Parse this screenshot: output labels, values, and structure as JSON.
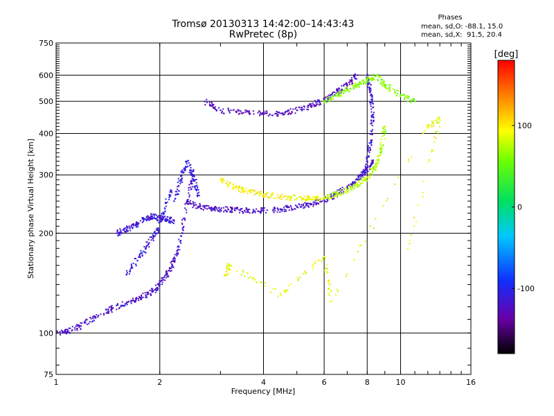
{
  "chart_data": {
    "type": "scatter",
    "title": "Tromsø 20130313 14:42:00–14:43:43",
    "subtitle": "RwPretec (8p)",
    "xlabel": "Frequency [MHz]",
    "ylabel": "Stationary phase Virtual Height [km]",
    "x_scale": "log",
    "y_scale": "log",
    "xlim": [
      1,
      16
    ],
    "ylim": [
      75,
      750
    ],
    "x_ticks": [
      1,
      2,
      4,
      6,
      8,
      10,
      16
    ],
    "y_ticks": [
      75,
      100,
      200,
      300,
      400,
      500,
      600,
      750
    ],
    "grid": true,
    "stats": {
      "title": "Phases",
      "o_line": "mean, sd,O: -88.1, 15.0",
      "x_line": "mean, sd,X:  91.5, 20.4"
    },
    "colorbar": {
      "label": "[deg]",
      "min": -180,
      "max": 180,
      "ticks": [
        -100,
        0,
        100
      ],
      "colormap": "rainbow"
    },
    "traces": [
      {
        "x": [
          1.0,
          1.08,
          1.18,
          1.3,
          1.45,
          1.6,
          1.75,
          1.9,
          2.0,
          2.1,
          2.2,
          2.3,
          2.4,
          2.5
        ],
        "y": [
          100,
          101,
          105,
          112,
          118,
          123,
          128,
          133,
          140,
          150,
          165,
          190,
          250,
          300
        ],
        "phase": -120
      },
      {
        "x": [
          1.5,
          1.6,
          1.7,
          1.8,
          1.9,
          2.0,
          2.1,
          2.2
        ],
        "y": [
          200,
          205,
          212,
          220,
          225,
          222,
          220,
          218
        ],
        "phase": -115
      },
      {
        "x": [
          1.6,
          1.75,
          1.85,
          1.95,
          2.05,
          2.15
        ],
        "y": [
          150,
          170,
          185,
          200,
          230,
          270
        ],
        "phase": -110
      },
      {
        "x": [
          2.2,
          2.3,
          2.4,
          2.5,
          2.6
        ],
        "y": [
          250,
          290,
          330,
          300,
          260
        ],
        "phase": -105
      },
      {
        "x": [
          2.4,
          2.6,
          2.8,
          3.0,
          3.3,
          3.6,
          4.0,
          4.5,
          5.0,
          5.5,
          6.0,
          6.5,
          7.0,
          7.5,
          8.0,
          8.3
        ],
        "y": [
          250,
          240,
          238,
          236,
          235,
          234,
          234,
          236,
          240,
          245,
          252,
          262,
          275,
          290,
          310,
          330
        ],
        "phase": -120
      },
      {
        "x": [
          3.0,
          3.3,
          3.6,
          4.0,
          4.5,
          5.0,
          5.5,
          6.0
        ],
        "y": [
          290,
          275,
          268,
          262,
          258,
          255,
          254,
          255
        ],
        "phase": 95
      },
      {
        "x": [
          6.0,
          6.5,
          7.0,
          7.5,
          8.0,
          8.5,
          8.8,
          9.0
        ],
        "y": [
          255,
          262,
          270,
          280,
          295,
          320,
          360,
          420
        ],
        "phase": 75
      },
      {
        "x": [
          7.8,
          8.0,
          8.2,
          8.3,
          8.2,
          8.0
        ],
        "y": [
          300,
          330,
          380,
          450,
          520,
          600
        ],
        "phase": -115
      },
      {
        "x": [
          2.7,
          3.0,
          3.5,
          4.0,
          4.5,
          5.0,
          5.5,
          6.0,
          6.5,
          7.0,
          7.5
        ],
        "y": [
          500,
          470,
          462,
          458,
          460,
          470,
          485,
          505,
          530,
          560,
          600
        ],
        "phase": -125
      },
      {
        "x": [
          6.0,
          6.5,
          7.0,
          7.5,
          8.0,
          8.5,
          9.0,
          10.0,
          11.0
        ],
        "y": [
          500,
          520,
          540,
          560,
          580,
          600,
          560,
          520,
          500
        ],
        "phase": 60
      },
      {
        "x": [
          3.1,
          3.2,
          4.5,
          6.0,
          6.3,
          12.0,
          13.0,
          10.5
        ],
        "y": [
          150,
          160,
          130,
          170,
          125,
          420,
          440,
          180
        ],
        "phase": 90
      }
    ]
  }
}
